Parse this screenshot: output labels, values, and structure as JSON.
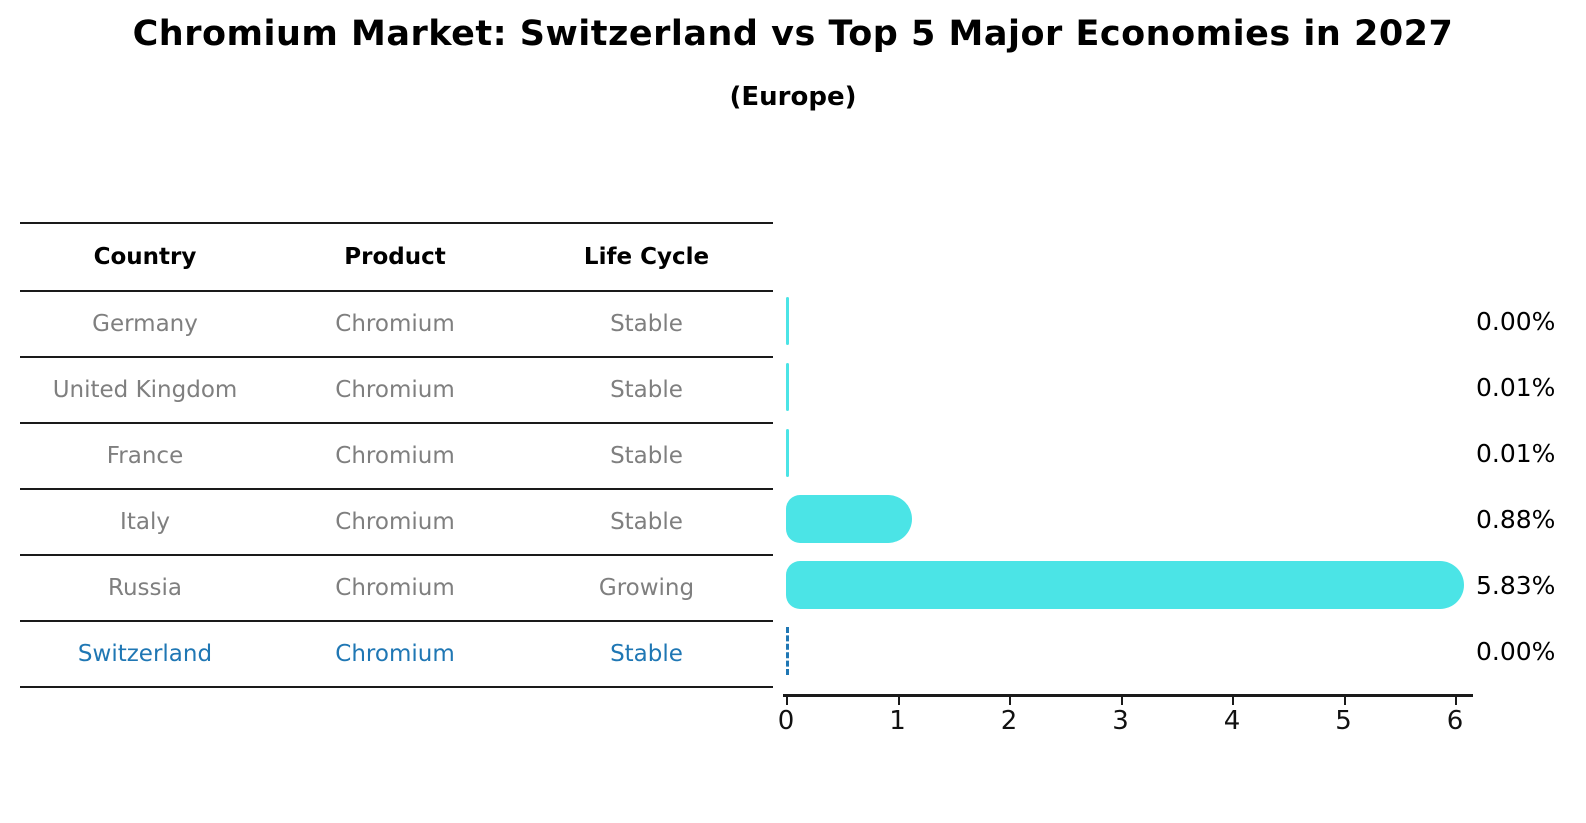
{
  "title": "Chromium Market: Switzerland vs Top 5 Major Economies in 2027",
  "subtitle": "(Europe)",
  "table": {
    "columns": [
      "Country",
      "Product",
      "Life Cycle"
    ],
    "rows": [
      {
        "country": "Germany",
        "product": "Chromium",
        "life_cycle": "Stable",
        "highlight": false
      },
      {
        "country": "United Kingdom",
        "product": "Chromium",
        "life_cycle": "Stable",
        "highlight": false
      },
      {
        "country": "France",
        "product": "Chromium",
        "life_cycle": "Stable",
        "highlight": false
      },
      {
        "country": "Italy",
        "product": "Chromium",
        "life_cycle": "Stable",
        "highlight": false
      },
      {
        "country": "Russia",
        "product": "Chromium",
        "life_cycle": "Growing",
        "highlight": false
      },
      {
        "country": "Switzerland",
        "product": "Chromium",
        "life_cycle": "Stable",
        "highlight": true
      }
    ]
  },
  "chart_data": {
    "type": "bar",
    "orientation": "horizontal",
    "title": "Chromium Market: Switzerland vs Top 5 Major Economies in 2027",
    "subtitle": "(Europe)",
    "categories": [
      "Germany",
      "United Kingdom",
      "France",
      "Italy",
      "Russia",
      "Switzerland"
    ],
    "values": [
      0.0,
      0.01,
      0.01,
      0.88,
      5.83,
      0.0
    ],
    "value_labels": [
      "0.00%",
      "0.01%",
      "0.01%",
      "0.88%",
      "5.83%",
      "0.00%"
    ],
    "xlabel": "",
    "ylabel": "",
    "xlim": [
      0,
      6
    ],
    "x_ticks": [
      "0",
      "1",
      "2",
      "3",
      "4",
      "5",
      "6"
    ],
    "grid": false,
    "legend": false,
    "bar_color": "#4BE4E6",
    "highlight_color": "#1F77B4",
    "highlight_index": 5,
    "highlight_style": "dashed-outline-zero-bar"
  },
  "colors": {
    "accent_cyan": "#4BE4E6",
    "highlight_blue": "#1F77B4",
    "muted_text": "#7F7F7F",
    "axis_black": "#1A1A1A"
  }
}
